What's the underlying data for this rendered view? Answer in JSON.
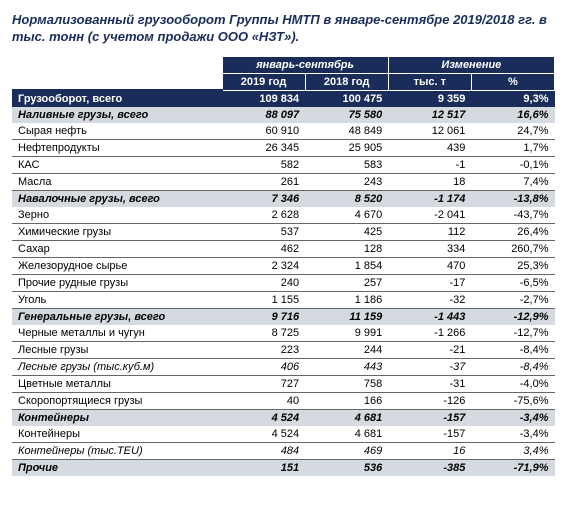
{
  "title": "Нормализованный грузооборот Группы НМТП в январе-сентябре 2019/2018 гг. в тыс. тонн (с учетом продажи ООО «НЗТ»).",
  "headers": {
    "group1": "январь-сентябрь",
    "group2": "Изменение",
    "c1": "2019 год",
    "c2": "2018 год",
    "c3": "тыс. т",
    "c4": "%"
  },
  "rows": [
    {
      "t": "total",
      "l": "Грузооборот, всего",
      "v": [
        "109 834",
        "100 475",
        "9 359",
        "9,3%"
      ]
    },
    {
      "t": "sect",
      "l": "Наливные грузы, всего",
      "v": [
        "88 097",
        "75 580",
        "12 517",
        "16,6%"
      ]
    },
    {
      "t": "row",
      "l": "Сырая нефть",
      "v": [
        "60 910",
        "48 849",
        "12 061",
        "24,7%"
      ]
    },
    {
      "t": "row",
      "l": "Нефтепродукты",
      "v": [
        "26 345",
        "25 905",
        "439",
        "1,7%"
      ]
    },
    {
      "t": "row",
      "l": "КАС",
      "v": [
        "582",
        "583",
        "-1",
        "-0,1%"
      ]
    },
    {
      "t": "row",
      "l": "Масла",
      "v": [
        "261",
        "243",
        "18",
        "7,4%"
      ]
    },
    {
      "t": "sect",
      "l": "Навалочные грузы, всего",
      "v": [
        "7 346",
        "8 520",
        "-1 174",
        "-13,8%"
      ]
    },
    {
      "t": "row",
      "l": "Зерно",
      "v": [
        "2 628",
        "4 670",
        "-2 041",
        "-43,7%"
      ]
    },
    {
      "t": "row",
      "l": "Химические грузы",
      "v": [
        "537",
        "425",
        "112",
        "26,4%"
      ]
    },
    {
      "t": "row",
      "l": "Сахар",
      "v": [
        "462",
        "128",
        "334",
        "260,7%"
      ]
    },
    {
      "t": "row",
      "l": "Железорудное сырье",
      "v": [
        "2 324",
        "1 854",
        "470",
        "25,3%"
      ]
    },
    {
      "t": "row",
      "l": "Прочие рудные грузы",
      "v": [
        "240",
        "257",
        "-17",
        "-6,5%"
      ]
    },
    {
      "t": "row",
      "l": "Уголь",
      "v": [
        "1 155",
        "1 186",
        "-32",
        "-2,7%"
      ]
    },
    {
      "t": "sect",
      "l": "Генеральные грузы, всего",
      "v": [
        "9 716",
        "11 159",
        "-1 443",
        "-12,9%"
      ]
    },
    {
      "t": "row",
      "l": "Черные металлы и чугун",
      "v": [
        "8 725",
        "9 991",
        "-1 266",
        "-12,7%"
      ]
    },
    {
      "t": "row",
      "l": "Лесные грузы",
      "v": [
        "223",
        "244",
        "-21",
        "-8,4%"
      ]
    },
    {
      "t": "sub",
      "l": "Лесные грузы (тыс.куб.м)",
      "v": [
        "406",
        "443",
        "-37",
        "-8,4%"
      ]
    },
    {
      "t": "row",
      "l": "Цветные металлы",
      "v": [
        "727",
        "758",
        "-31",
        "-4,0%"
      ]
    },
    {
      "t": "row",
      "l": "Скоропортящиеся грузы",
      "v": [
        "40",
        "166",
        "-126",
        "-75,6%"
      ]
    },
    {
      "t": "sect",
      "l": "Контейнеры",
      "v": [
        "4 524",
        "4 681",
        "-157",
        "-3,4%"
      ]
    },
    {
      "t": "row",
      "l": "Контейнеры",
      "v": [
        "4 524",
        "4 681",
        "-157",
        "-3,4%"
      ]
    },
    {
      "t": "sub",
      "l": "Контейнеры (тыс.TEU)",
      "v": [
        "484",
        "469",
        "16",
        "3,4%"
      ]
    },
    {
      "t": "sect",
      "l": "Прочие",
      "v": [
        "151",
        "536",
        "-385",
        "-71,9%"
      ]
    }
  ]
}
